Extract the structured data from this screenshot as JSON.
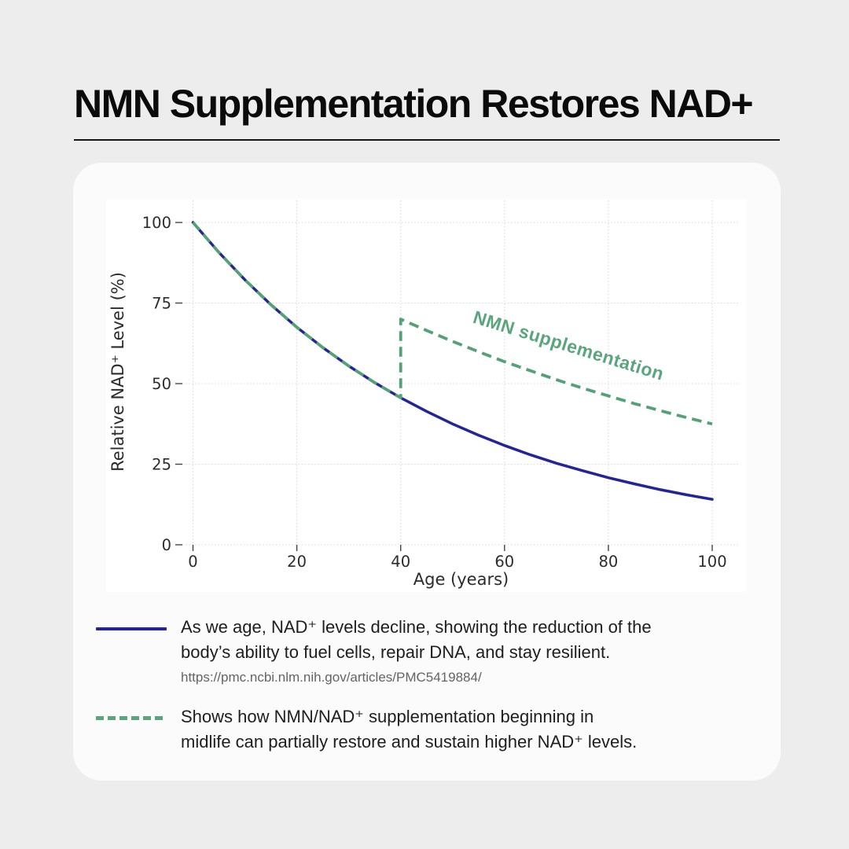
{
  "header": {
    "title": "NMN Supplementation Restores NAD+"
  },
  "chart_data": {
    "type": "line",
    "title": "",
    "xlabel": "Age (years)",
    "ylabel": "Relative NAD⁺ Level (%)",
    "xlim": [
      -2,
      105
    ],
    "ylim": [
      0,
      107
    ],
    "x_ticks": [
      0,
      20,
      40,
      60,
      80,
      100
    ],
    "y_ticks": [
      0,
      25,
      50,
      75,
      100
    ],
    "grid": true,
    "series": [
      {
        "name": "natural-nad-decline",
        "style": "solid",
        "color": "#24249a",
        "x": [
          0,
          5,
          10,
          15,
          20,
          25,
          30,
          35,
          40,
          45,
          50,
          55,
          60,
          65,
          70,
          75,
          80,
          85,
          90,
          95,
          100
        ],
        "y": [
          100,
          90.7,
          82.2,
          74.5,
          67.5,
          61.2,
          55.5,
          50.3,
          45.6,
          41.4,
          37.5,
          34.0,
          30.8,
          27.9,
          25.3,
          23.0,
          20.8,
          18.9,
          17.1,
          15.5,
          14.1
        ]
      },
      {
        "name": "nmn-supplementation",
        "style": "dashed",
        "color": "#55a176",
        "x": [
          0,
          5,
          10,
          15,
          20,
          25,
          30,
          35,
          40,
          40,
          45,
          50,
          55,
          60,
          65,
          70,
          75,
          80,
          85,
          90,
          95,
          100
        ],
        "y": [
          100,
          90.7,
          82.2,
          74.5,
          67.5,
          61.2,
          55.5,
          50.3,
          45.6,
          70,
          66.5,
          63.1,
          59.9,
          56.8,
          54.0,
          51.2,
          48.6,
          46.2,
          43.8,
          41.6,
          39.5,
          37.5
        ]
      }
    ],
    "annotation": {
      "text": "NMN supplementation",
      "x": 72,
      "y": 60,
      "rotation_deg": 17,
      "color": "#5aa67c"
    },
    "legend_position": "below"
  },
  "legend": {
    "rows": [
      {
        "swatch": "solid-navy-line",
        "lines": [
          "As we age, NAD⁺ levels decline, showing the reduction of the",
          "body’s ability to fuel cells, repair DNA, and stay resilient."
        ],
        "source_url": "https://pmc.ncbi.nlm.nih.gov/articles/PMC5419884/"
      },
      {
        "swatch": "dashed-green-line",
        "lines": [
          "Shows how NMN/NAD⁺ supplementation beginning in",
          "midlife can partially restore and sustain higher NAD⁺ levels."
        ],
        "source_url": ""
      }
    ]
  }
}
